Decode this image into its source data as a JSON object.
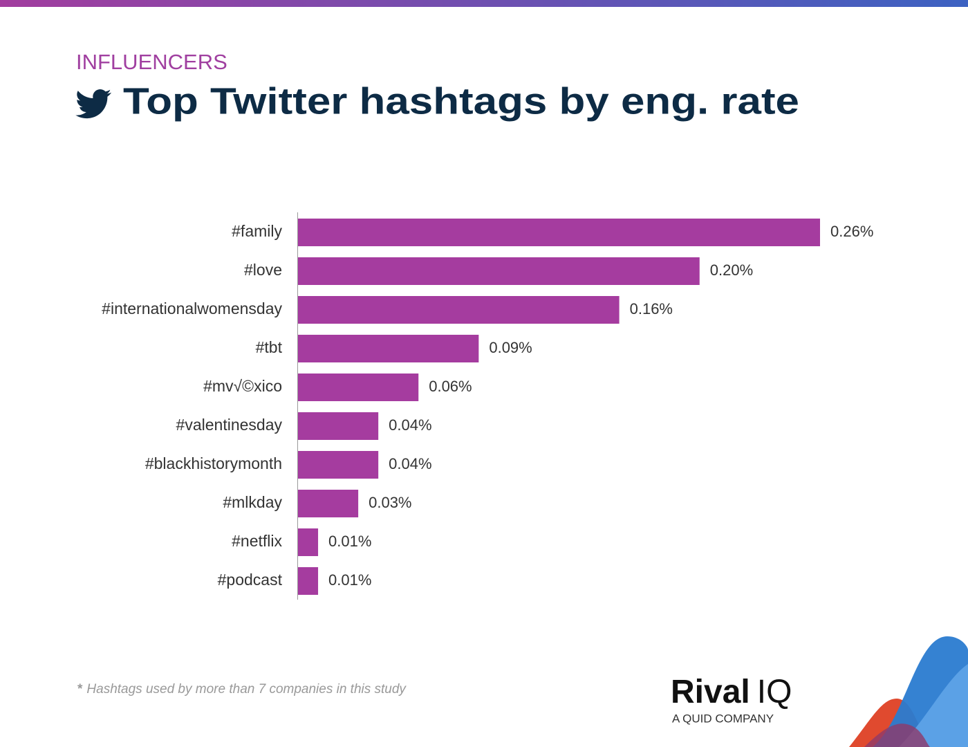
{
  "chart_data": {
    "type": "bar",
    "orientation": "horizontal",
    "subtitle": "INFLUENCERS",
    "title": "Top Twitter hashtags by eng. rate",
    "categories": [
      "#family",
      "#love",
      "#internationalwomensday",
      "#tbt",
      "#mv√©xico",
      "#valentinesday",
      "#blackhistorymonth",
      "#mlkday",
      "#netflix",
      "#podcast"
    ],
    "values": [
      0.26,
      0.2,
      0.16,
      0.09,
      0.06,
      0.04,
      0.04,
      0.03,
      0.01,
      0.01
    ],
    "value_labels": [
      "0.26%",
      "0.20%",
      "0.16%",
      "0.09%",
      "0.06%",
      "0.04%",
      "0.04%",
      "0.03%",
      "0.01%",
      "0.01%"
    ],
    "color": "#a53c9f"
  },
  "footer": {
    "note_mark": "*",
    "note": "Hashtags used by more than 7 companies in this study",
    "logo_bold": "Rival",
    "logo_light": "IQ",
    "logo_tagline": "A QUID COMPANY"
  }
}
